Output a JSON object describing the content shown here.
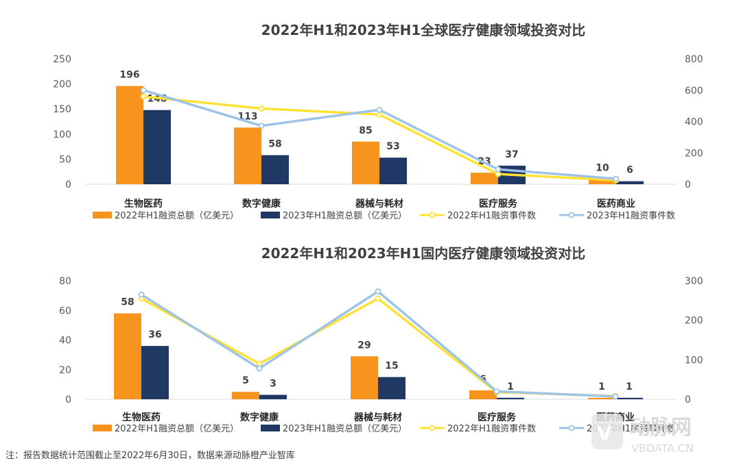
{
  "colors": {
    "bar2022": "#F7941D",
    "bar2023": "#1F3864",
    "line2022": "#FFE135",
    "line2023": "#9DC3E6",
    "grid": "#D9D9D9"
  },
  "legend": [
    {
      "label": "2022年H1融资总额（亿美元）",
      "kind": "bar",
      "color_key": "bar2022"
    },
    {
      "label": "2023年H1融资总额（亿美元）",
      "kind": "bar",
      "color_key": "bar2023"
    },
    {
      "label": "2022年H1融资事件数",
      "kind": "line",
      "color_key": "line2022"
    },
    {
      "label": "2023年H1融资事件数",
      "kind": "line",
      "color_key": "line2023"
    }
  ],
  "chart_data": [
    {
      "type": "bar",
      "title": "2022年H1和2023年H1全球医疗健康领域投资对比",
      "categories": [
        "生物医药",
        "数字健康",
        "器械与耗材",
        "医疗服务",
        "医药商业"
      ],
      "series": [
        {
          "name": "2022年H1融资总额（亿美元）",
          "values": [
            196,
            113,
            85,
            23,
            10
          ],
          "axis": "left",
          "kind": "bar"
        },
        {
          "name": "2023年H1融资总额（亿美元）",
          "values": [
            148,
            58,
            53,
            37,
            6
          ],
          "axis": "left",
          "kind": "bar"
        },
        {
          "name": "2022年H1融资事件数",
          "values": [
            560,
            483,
            445,
            65,
            25
          ],
          "axis": "right",
          "kind": "line"
        },
        {
          "name": "2023年H1融资事件数",
          "values": [
            600,
            373,
            475,
            95,
            35
          ],
          "axis": "right",
          "kind": "line"
        }
      ],
      "y_left": {
        "min": 0,
        "max": 250,
        "ticks": [
          "0",
          "50",
          "100",
          "150",
          "200",
          "250"
        ]
      },
      "y_right": {
        "min": 0,
        "max": 800,
        "ticks": [
          "0",
          "200",
          "400",
          "600",
          "800"
        ]
      },
      "legend_position": "bottom"
    },
    {
      "type": "bar",
      "title": "2022年H1和2023年H1国内医疗健康领域投资对比",
      "categories": [
        "生物医药",
        "数字健康",
        "器械与耗材",
        "医疗服务",
        "医药商业"
      ],
      "series": [
        {
          "name": "2022年H1融资总额（亿美元）",
          "values": [
            58,
            5,
            29,
            6,
            1
          ],
          "axis": "left",
          "kind": "bar"
        },
        {
          "name": "2023年H1融资总额（亿美元）",
          "values": [
            36,
            3,
            15,
            1,
            1
          ],
          "axis": "left",
          "kind": "bar"
        },
        {
          "name": "2022年H1融资事件数",
          "values": [
            255,
            90,
            255,
            18,
            8
          ],
          "axis": "right",
          "kind": "line"
        },
        {
          "name": "2023年H1融资事件数",
          "values": [
            265,
            78,
            273,
            20,
            7
          ],
          "axis": "right",
          "kind": "line"
        }
      ],
      "y_left": {
        "min": 0,
        "max": 80,
        "ticks": [
          "0",
          "20",
          "40",
          "60",
          "80"
        ]
      },
      "y_right": {
        "min": 0,
        "max": 300,
        "ticks": [
          "0",
          "100",
          "200",
          "300"
        ]
      },
      "legend_position": "bottom"
    }
  ],
  "footnote": "注：报告数据统计范围截止至2022年6月30日，数据来源动脉橙产业智库",
  "watermark": {
    "brand": "动脉网",
    "url": "VBDATA.CN"
  }
}
